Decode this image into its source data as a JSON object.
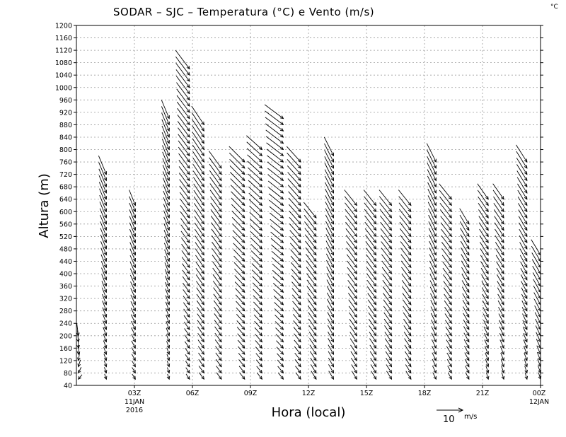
{
  "chart_data": {
    "type": "wind-barbs",
    "title": "SODAR – SJC – Temperatura (°C) e Vento (m/s)",
    "corner_unit": "°C",
    "xlabel": "Hora (local)",
    "ylabel": "Altura (m)",
    "ylim": [
      40,
      1200
    ],
    "xlim_hours": [
      0,
      24
    ],
    "yticks": [
      40,
      80,
      120,
      160,
      200,
      240,
      280,
      320,
      360,
      400,
      440,
      480,
      520,
      560,
      600,
      640,
      680,
      720,
      760,
      800,
      840,
      880,
      920,
      960,
      1000,
      1040,
      1080,
      1120,
      1160,
      1200
    ],
    "xticks": [
      {
        "hour": 3,
        "label": "03Z",
        "sub1": "11JAN",
        "sub2": "2016"
      },
      {
        "hour": 6,
        "label": "06Z",
        "sub1": "",
        "sub2": ""
      },
      {
        "hour": 9,
        "label": "09Z",
        "sub1": "",
        "sub2": ""
      },
      {
        "hour": 12,
        "label": "12Z",
        "sub1": "",
        "sub2": ""
      },
      {
        "hour": 15,
        "label": "15Z",
        "sub1": "",
        "sub2": ""
      },
      {
        "hour": 18,
        "label": "18Z",
        "sub1": "",
        "sub2": ""
      },
      {
        "hour": 21,
        "label": "21Z",
        "sub1": "",
        "sub2": ""
      },
      {
        "hour": 24,
        "label": "00Z",
        "sub1": "12JAN",
        "sub2": ""
      }
    ],
    "reference_vector": {
      "speed": 10,
      "label": "10",
      "unit": "m/s"
    },
    "grid": true,
    "profiles": [
      {
        "hour": 0.1,
        "top": 200,
        "lowU": -3,
        "lowV": -2,
        "highU": 1,
        "highV": -8
      },
      {
        "hour": 1.55,
        "top": 720,
        "lowU": 1,
        "lowV": -3,
        "highU": 5,
        "highV": -12
      },
      {
        "hour": 3.05,
        "top": 620,
        "lowU": 2,
        "lowV": -3,
        "highU": 4,
        "highV": -10
      },
      {
        "hour": 4.8,
        "top": 900,
        "lowU": 1,
        "lowV": -3,
        "highU": 5,
        "highV": -12
      },
      {
        "hour": 5.85,
        "top": 1060,
        "lowU": 2,
        "lowV": -3,
        "highU": 9,
        "highV": -12
      },
      {
        "hour": 6.6,
        "top": 880,
        "lowU": 3,
        "lowV": -4,
        "highU": 8,
        "highV": -12
      },
      {
        "hour": 7.5,
        "top": 740,
        "lowU": 3,
        "lowV": -4,
        "highU": 8,
        "highV": -11
      },
      {
        "hour": 8.7,
        "top": 760,
        "lowU": 3,
        "lowV": -4,
        "highU": 10,
        "highV": -10
      },
      {
        "hour": 9.6,
        "top": 800,
        "lowU": 3,
        "lowV": -4,
        "highU": 10,
        "highV": -9
      },
      {
        "hour": 10.7,
        "top": 900,
        "lowU": 3,
        "lowV": -4,
        "highU": 12,
        "highV": -9
      },
      {
        "hour": 11.6,
        "top": 760,
        "lowU": 3,
        "lowV": -4,
        "highU": 9,
        "highV": -10
      },
      {
        "hour": 12.4,
        "top": 580,
        "lowU": 3,
        "lowV": -5,
        "highU": 8,
        "highV": -10
      },
      {
        "hour": 13.3,
        "top": 780,
        "lowU": 3,
        "lowV": -5,
        "highU": 6,
        "highV": -12
      },
      {
        "hour": 14.5,
        "top": 620,
        "lowU": 3,
        "lowV": -5,
        "highU": 8,
        "highV": -10
      },
      {
        "hour": 15.5,
        "top": 620,
        "lowU": 3,
        "lowV": -5,
        "highU": 8,
        "highV": -10
      },
      {
        "hour": 16.3,
        "top": 620,
        "lowU": 3,
        "lowV": -5,
        "highU": 8,
        "highV": -10
      },
      {
        "hour": 17.3,
        "top": 620,
        "lowU": 3,
        "lowV": -5,
        "highU": 8,
        "highV": -10
      },
      {
        "hour": 18.6,
        "top": 760,
        "lowU": 2,
        "lowV": -4,
        "highU": 6,
        "highV": -12
      },
      {
        "hour": 19.4,
        "top": 640,
        "lowU": 2,
        "lowV": -4,
        "highU": 8,
        "highV": -10
      },
      {
        "hour": 20.3,
        "top": 560,
        "lowU": 2,
        "lowV": -4,
        "highU": 6,
        "highV": -10
      },
      {
        "hour": 21.3,
        "top": 640,
        "lowU": 1,
        "lowV": -4,
        "highU": 7,
        "highV": -10
      },
      {
        "hour": 22.1,
        "top": 640,
        "lowU": 1,
        "lowV": -4,
        "highU": 7,
        "highV": -10
      },
      {
        "hour": 23.3,
        "top": 760,
        "lowU": 1,
        "lowV": -4,
        "highU": 7,
        "highV": -11
      },
      {
        "hour": 24.0,
        "top": 460,
        "lowU": 1,
        "lowV": -4,
        "highU": 6,
        "highV": -10
      }
    ]
  }
}
